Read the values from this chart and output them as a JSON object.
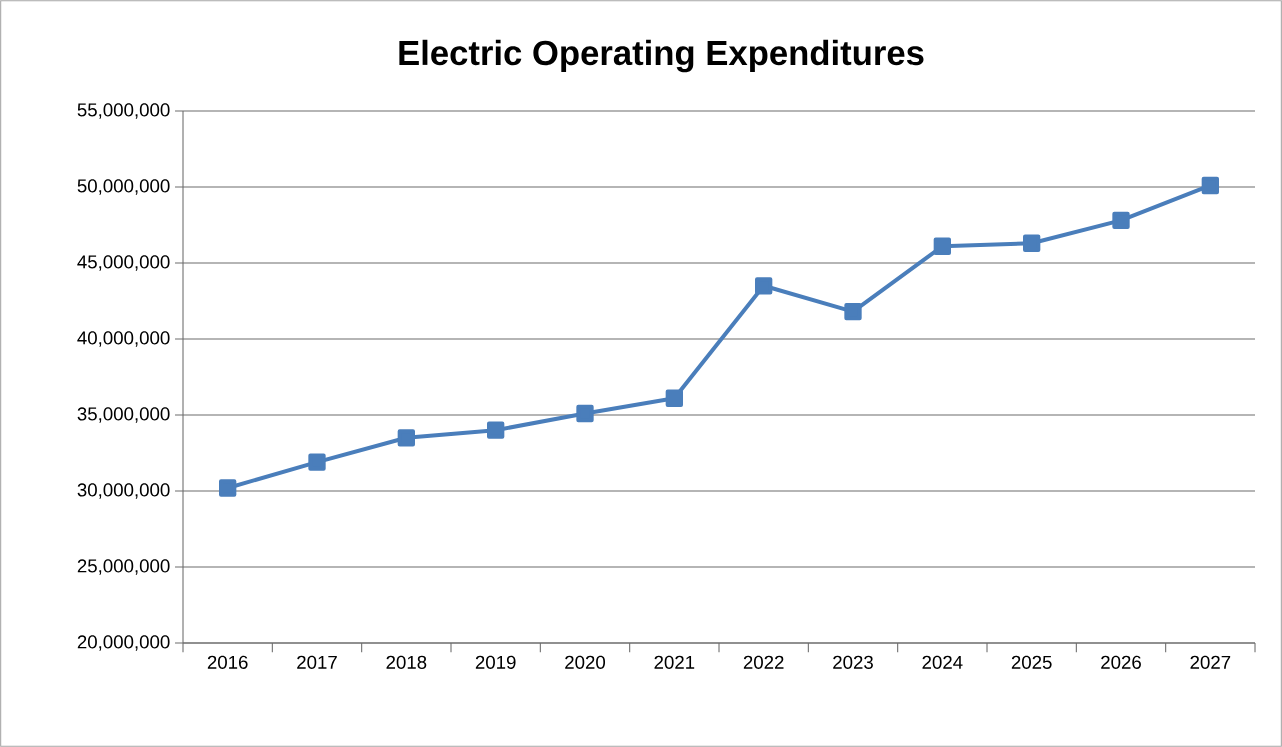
{
  "chart_data": {
    "type": "line",
    "title": "Electric Operating Expenditures",
    "categories": [
      "2016",
      "2017",
      "2018",
      "2019",
      "2020",
      "2021",
      "2022",
      "2023",
      "2024",
      "2025",
      "2026",
      "2027"
    ],
    "series": [
      {
        "color": "#4a7ebb",
        "values": [
          30200000,
          31900000,
          33500000,
          34000000,
          35100000,
          36100000,
          43500000,
          41800000,
          46100000,
          46300000,
          47800000,
          50100000
        ]
      }
    ],
    "ylim": [
      20000000,
      55000000
    ],
    "yticks": [
      {
        "value": 20000000,
        "label": "20,000,000"
      },
      {
        "value": 25000000,
        "label": "25,000,000"
      },
      {
        "value": 30000000,
        "label": "30,000,000"
      },
      {
        "value": 35000000,
        "label": "35,000,000"
      },
      {
        "value": 40000000,
        "label": "40,000,000"
      },
      {
        "value": 45000000,
        "label": "45,000,000"
      },
      {
        "value": 50000000,
        "label": "50,000,000"
      },
      {
        "value": 55000000,
        "label": "55,000,000"
      }
    ],
    "grid": "y",
    "marker": "square",
    "line_style": "solid"
  }
}
